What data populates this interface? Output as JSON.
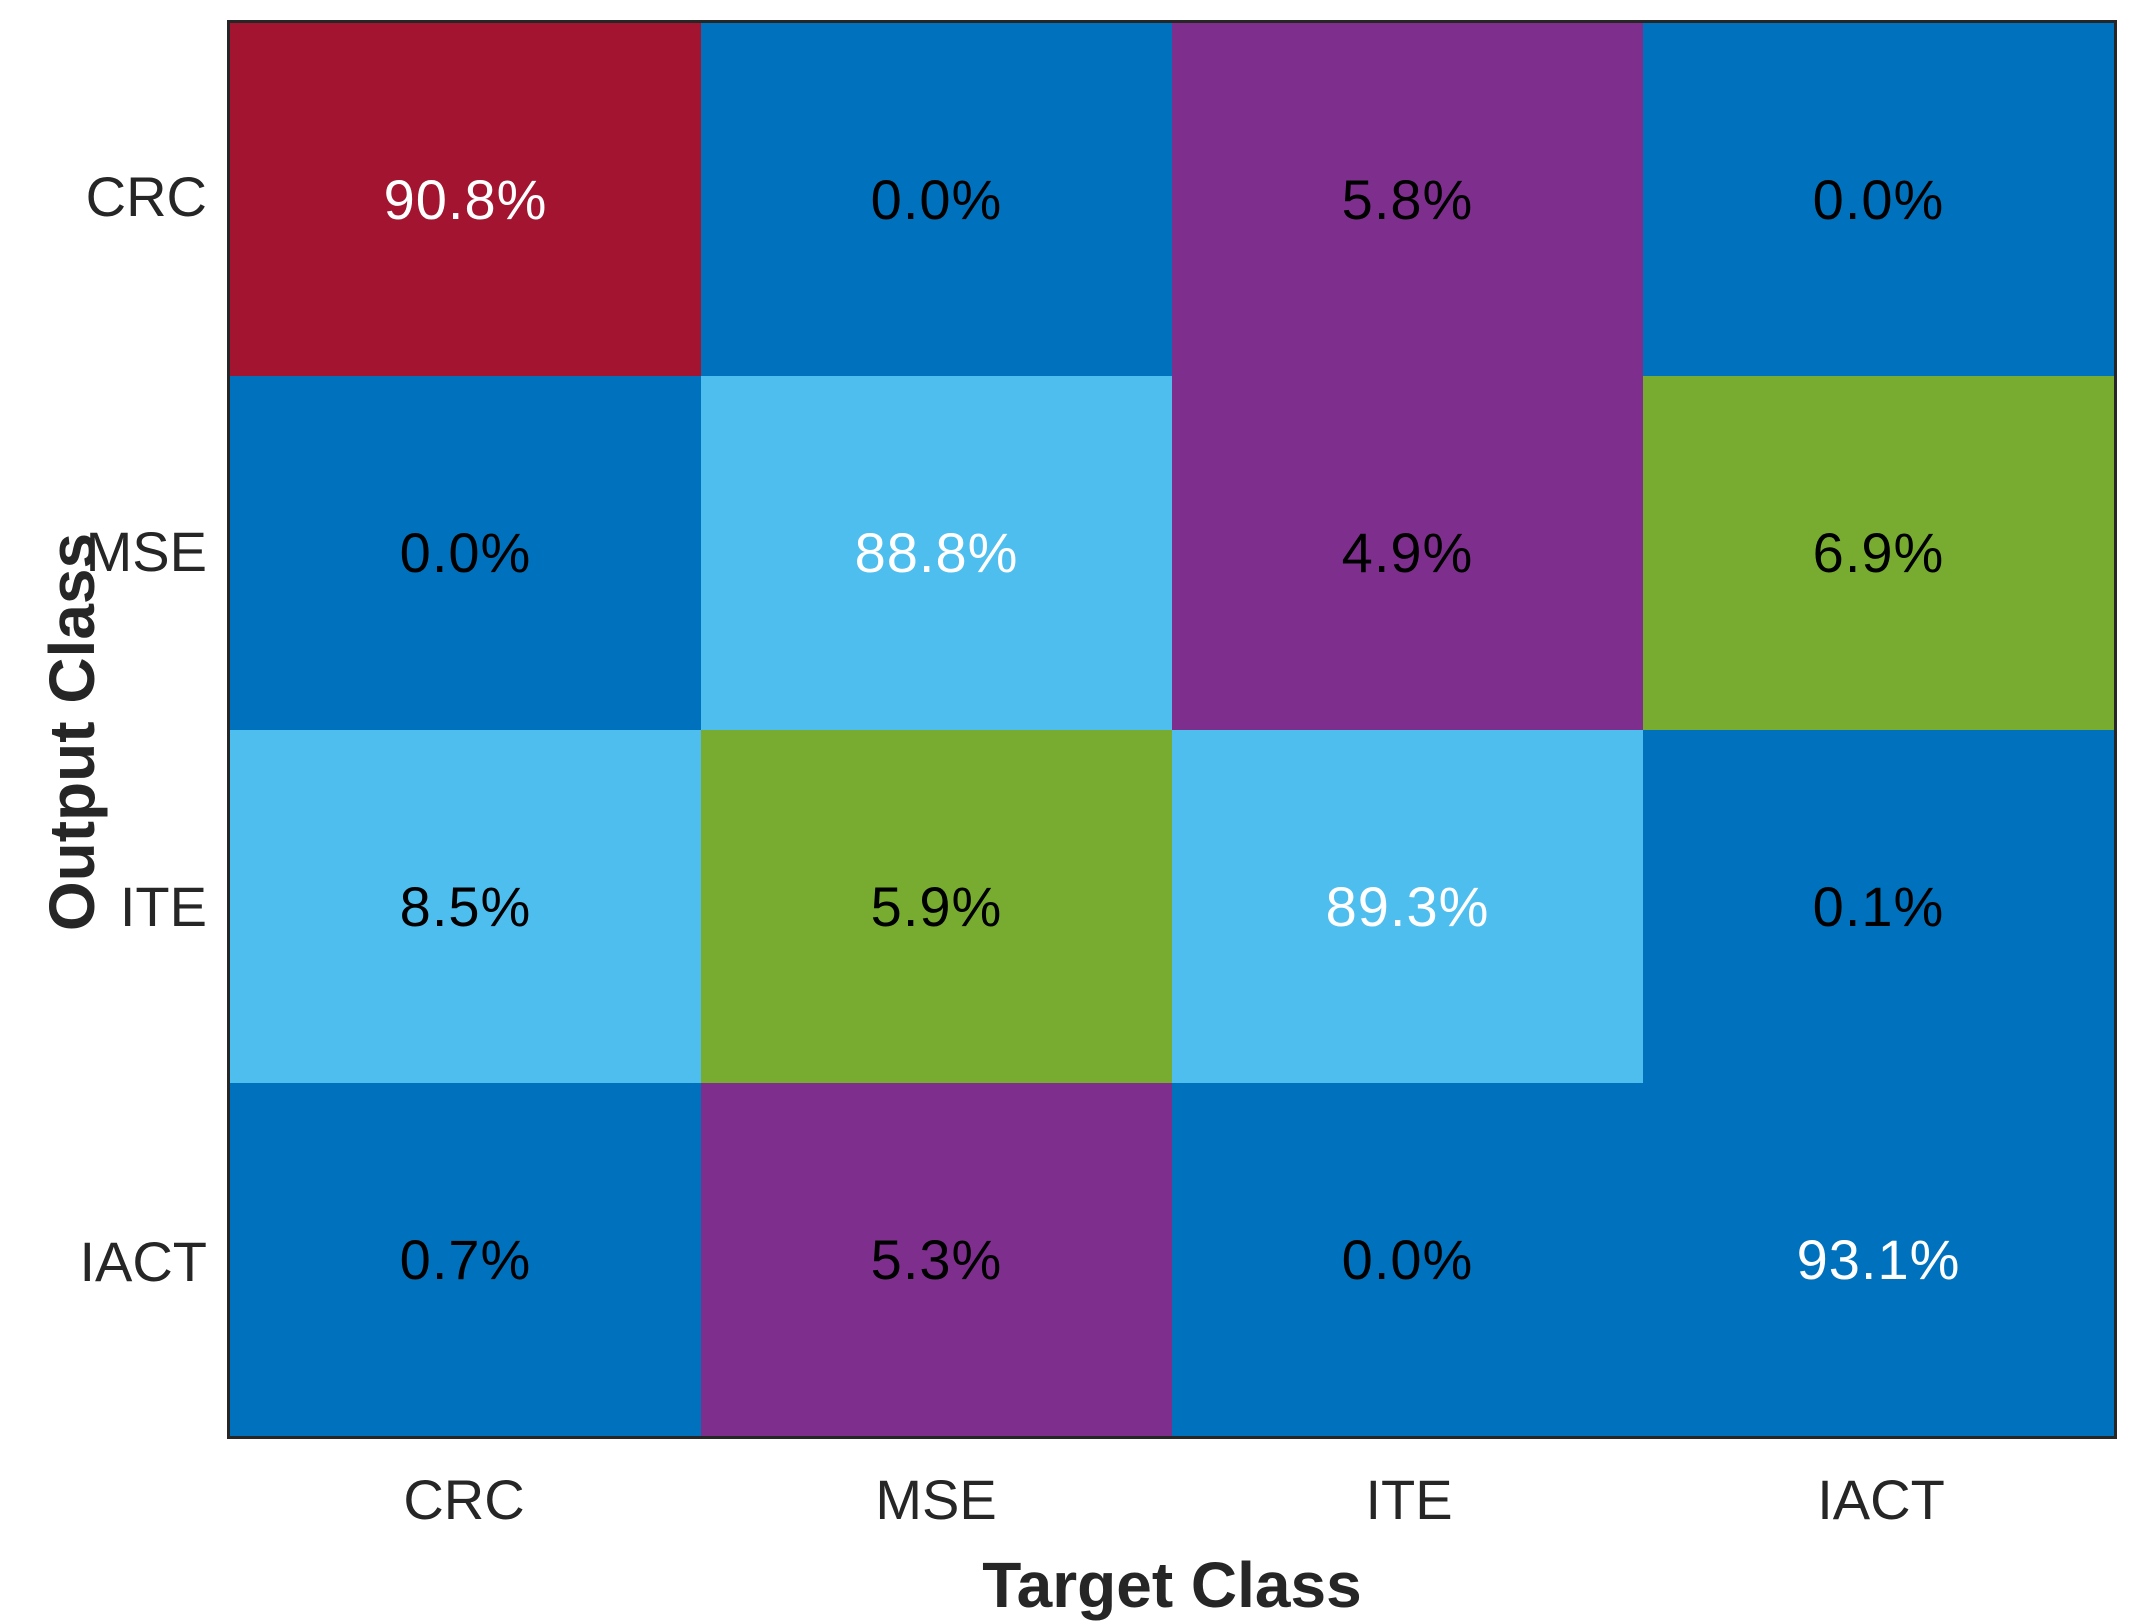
{
  "figure": {
    "background": "#FFFFFF",
    "axis_color": "#262626"
  },
  "chart_data": {
    "type": "heatmap",
    "subtype": "confusion-matrix",
    "title": "",
    "xlabel": "Target Class",
    "ylabel": "Output Class",
    "x_categories": [
      "CRC",
      "MSE",
      "ITE",
      "IACT"
    ],
    "y_categories": [
      "CRC",
      "MSE",
      "ITE",
      "IACT"
    ],
    "values_percent": [
      [
        90.8,
        0.0,
        5.8,
        0.0
      ],
      [
        0.0,
        88.8,
        4.9,
        6.9
      ],
      [
        8.5,
        5.9,
        89.3,
        0.1
      ],
      [
        0.7,
        5.3,
        0.0,
        93.1
      ]
    ],
    "palette": {
      "dark_red": "#A2142F",
      "blue": "#0072BD",
      "light_blue": "#4DBEEE",
      "purple": "#7E2F8E",
      "green": "#77AC30"
    },
    "grid": "off",
    "legend": "none",
    "cells": [
      {
        "row": "CRC",
        "col": "CRC",
        "label": "90.8%",
        "bg": "#A2142F",
        "fg": "#FFFFFF"
      },
      {
        "row": "CRC",
        "col": "MSE",
        "label": "0.0%",
        "bg": "#0072BD",
        "fg": "#000000"
      },
      {
        "row": "CRC",
        "col": "ITE",
        "label": "5.8%",
        "bg": "#7E2F8E",
        "fg": "#000000"
      },
      {
        "row": "CRC",
        "col": "IACT",
        "label": "0.0%",
        "bg": "#0072BD",
        "fg": "#000000"
      },
      {
        "row": "MSE",
        "col": "CRC",
        "label": "0.0%",
        "bg": "#0072BD",
        "fg": "#000000"
      },
      {
        "row": "MSE",
        "col": "MSE",
        "label": "88.8%",
        "bg": "#4DBEEE",
        "fg": "#FFFFFF"
      },
      {
        "row": "MSE",
        "col": "ITE",
        "label": "4.9%",
        "bg": "#7E2F8E",
        "fg": "#000000"
      },
      {
        "row": "MSE",
        "col": "IACT",
        "label": "6.9%",
        "bg": "#77AC30",
        "fg": "#000000"
      },
      {
        "row": "ITE",
        "col": "CRC",
        "label": "8.5%",
        "bg": "#4DBEEE",
        "fg": "#000000"
      },
      {
        "row": "ITE",
        "col": "MSE",
        "label": "5.9%",
        "bg": "#77AC30",
        "fg": "#000000"
      },
      {
        "row": "ITE",
        "col": "ITE",
        "label": "89.3%",
        "bg": "#4DBEEE",
        "fg": "#FFFFFF"
      },
      {
        "row": "ITE",
        "col": "IACT",
        "label": "0.1%",
        "bg": "#0072BD",
        "fg": "#000000"
      },
      {
        "row": "IACT",
        "col": "CRC",
        "label": "0.7%",
        "bg": "#0072BD",
        "fg": "#000000"
      },
      {
        "row": "IACT",
        "col": "MSE",
        "label": "5.3%",
        "bg": "#7E2F8E",
        "fg": "#000000"
      },
      {
        "row": "IACT",
        "col": "ITE",
        "label": "0.0%",
        "bg": "#0072BD",
        "fg": "#000000"
      },
      {
        "row": "IACT",
        "col": "IACT",
        "label": "93.1%",
        "bg": "#0072BD",
        "fg": "#FFFFFF"
      }
    ]
  }
}
